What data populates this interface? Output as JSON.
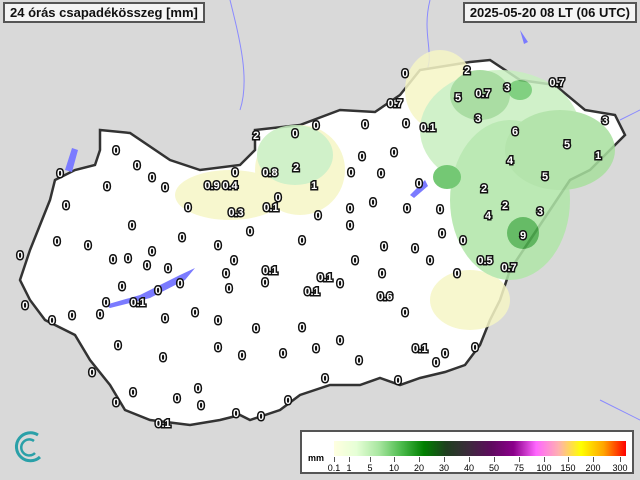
{
  "header": {
    "title": "24 órás csapadékösszeg [mm]",
    "datetime": "2025-05-20 08 LT (06 UTC)"
  },
  "legend": {
    "unit": "mm",
    "ticks": [
      "0.1",
      "1",
      "5",
      "10",
      "20",
      "30",
      "40",
      "50",
      "75",
      "100",
      "150",
      "200",
      "300"
    ],
    "colors": [
      "#ffffe0",
      "#e6ffd6",
      "#a8e6a0",
      "#4cbb4c",
      "#008000",
      "#1f3f1f",
      "#3d2a3d",
      "#5e0a5e",
      "#8b008b",
      "#ff66ff",
      "#ffb0b0",
      "#ffff00",
      "#ffa500",
      "#ff0000"
    ]
  },
  "map": {
    "background_color": "#d9d9d9",
    "country_color": "#ffffff",
    "water_color": "#7b7bff",
    "station_values": [
      "0",
      "2",
      "5",
      "0.7",
      "3",
      "0.7",
      "0.7",
      "0",
      "0.1",
      "3",
      "6",
      "3",
      "5",
      "1",
      "4",
      "5",
      "0",
      "0",
      "2",
      "2",
      "4",
      "3",
      "0",
      "0",
      "9",
      "0",
      "0",
      "0",
      "0",
      "0.5",
      "0.7",
      "0",
      "0",
      "2",
      "0",
      "0",
      "0",
      "0",
      "0",
      "0",
      "2",
      "1",
      "0",
      "0.8",
      "0.9",
      "0.4",
      "0",
      "0",
      "0.3",
      "0.1",
      "0",
      "0",
      "0",
      "0",
      "0",
      "0",
      "0",
      "0",
      "0.1",
      "0",
      "0.1",
      "0.1",
      "0",
      "0",
      "0",
      "0",
      "0",
      "0",
      "0",
      "0",
      "0",
      "0",
      "0",
      "0",
      "0",
      "0",
      "0",
      "0",
      "0",
      "0",
      "0",
      "0",
      "0",
      "0",
      "0",
      "0",
      "0",
      "0",
      "0.1",
      "0",
      "0",
      "0",
      "0",
      "0",
      "0",
      "0",
      "0",
      "0",
      "0",
      "0",
      "0",
      "0",
      "0",
      "0",
      "0",
      "0",
      "0",
      "0",
      "0",
      "0",
      "0",
      "0.1",
      "0",
      "0",
      "0",
      "0",
      "0",
      "0",
      "0.1",
      "0",
      "0",
      "0",
      "0",
      "0.6"
    ]
  }
}
